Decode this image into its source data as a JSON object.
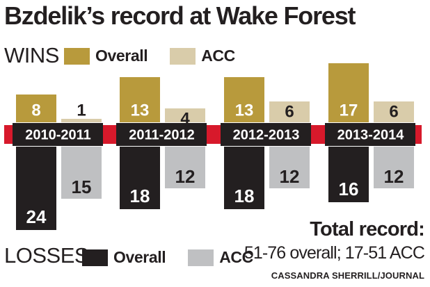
{
  "title": "Bzdelik’s record at Wake Forest",
  "wins_label": "WINS",
  "losses_label": "LOSSES",
  "legend": {
    "overall": "Overall",
    "acc": "ACC"
  },
  "colors": {
    "wins_overall": "#b89a3c",
    "wins_acc": "#d9ccaa",
    "losses_overall": "#231f20",
    "losses_acc": "#bfc0c2",
    "season_band": "#d7192b",
    "season_box": "#231f20"
  },
  "total": {
    "heading": "Total record:",
    "text": "51-76 overall; 17-51 ACC"
  },
  "credit": "CASSANDRA SHERRILL/JOURNAL",
  "chart_data": {
    "type": "bar",
    "categories": [
      "2010-2011",
      "2011-2012",
      "2012-2013",
      "2013-2014"
    ],
    "series": [
      {
        "name": "WINS Overall",
        "group": "wins",
        "kind": "overall",
        "values": [
          8,
          13,
          13,
          17
        ]
      },
      {
        "name": "WINS ACC",
        "group": "wins",
        "kind": "acc",
        "values": [
          1,
          4,
          6,
          6
        ]
      },
      {
        "name": "LOSSES Overall",
        "group": "losses",
        "kind": "overall",
        "values": [
          24,
          18,
          18,
          16
        ]
      },
      {
        "name": "LOSSES ACC",
        "group": "losses",
        "kind": "acc",
        "values": [
          15,
          12,
          12,
          12
        ]
      }
    ]
  }
}
